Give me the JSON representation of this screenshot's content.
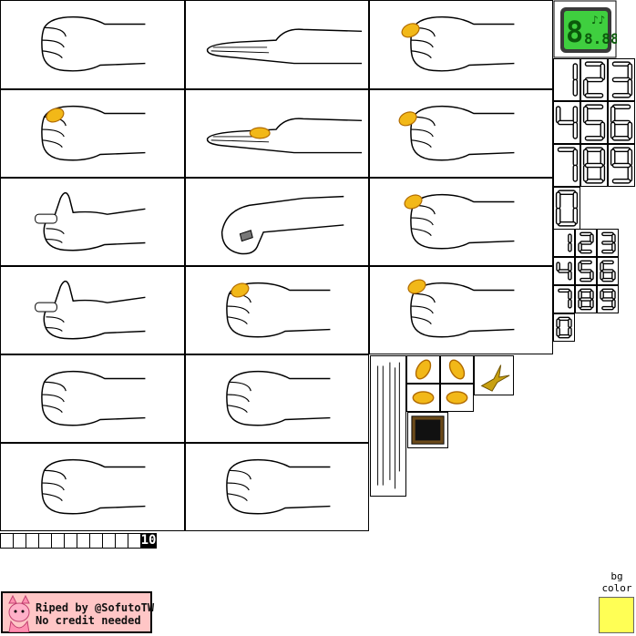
{
  "sheet": {
    "digits_large": [
      "1",
      "2",
      "3",
      "4",
      "5",
      "6",
      "7",
      "8",
      "9",
      "0"
    ],
    "digits_small": [
      "1",
      "2",
      "3",
      "4",
      "5",
      "6",
      "7",
      "8",
      "9",
      "0"
    ],
    "counter_label": "10",
    "lcd_icon_text": "8.88"
  },
  "credit": {
    "line1": "Riped by @SofutoTW",
    "line2": "No credit needed"
  },
  "bg_color": {
    "label_line1": "bg",
    "label_line2": "color",
    "value": "#ffff55"
  },
  "colors": {
    "coin": "#f2b818",
    "coin_dark": "#b06a00",
    "lcd_green": "#3fcf3f",
    "pink": "#ffc6c6"
  }
}
